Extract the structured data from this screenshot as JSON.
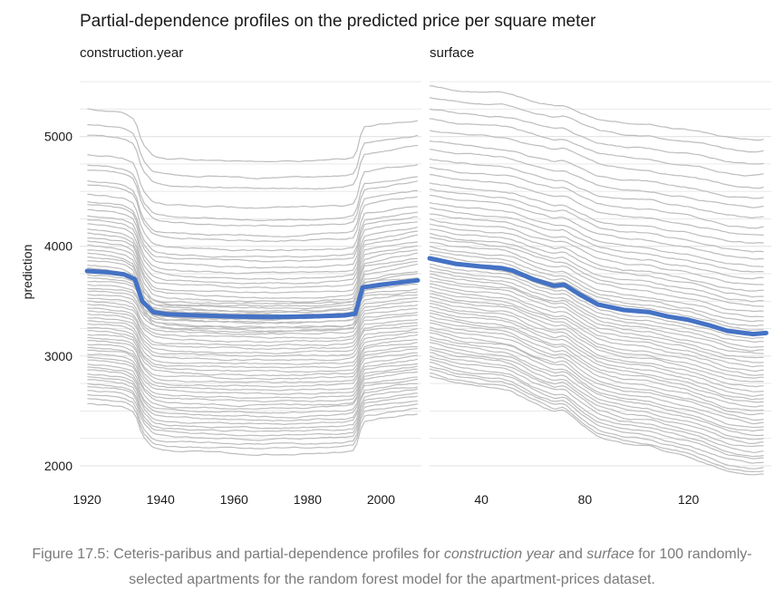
{
  "chart_data": {
    "type": "line",
    "title": "Partial-dependence profiles on the predicted price per square meter",
    "ylabel": "prediction",
    "ylim": [
      1950,
      5550
    ],
    "yticks": [
      2000,
      3000,
      4000,
      5000
    ],
    "grid": true,
    "colors": {
      "profile": "#bdbdbd",
      "average": "#4472c4",
      "grid": "#e6e6e6"
    },
    "panels": [
      {
        "name": "construction.year",
        "xlim": [
          1918,
          2011
        ],
        "xticks": [
          1920,
          1940,
          1960,
          1980,
          2000
        ],
        "x": [
          1920,
          1925,
          1930,
          1933,
          1935,
          1938,
          1942,
          1950,
          1960,
          1970,
          1980,
          1990,
          1993,
          1995,
          2000,
          2005,
          2010
        ],
        "average": [
          3775,
          3765,
          3745,
          3700,
          3500,
          3400,
          3380,
          3370,
          3360,
          3355,
          3360,
          3370,
          3385,
          3625,
          3650,
          3670,
          3690
        ],
        "profile_bases": [
          5250,
          5110,
          5010,
          4840,
          4740,
          4690,
          4600,
          4560,
          4470,
          4410,
          4380,
          4330,
          4280,
          4240,
          4200,
          4160,
          4120,
          4080,
          4050,
          4010,
          3970,
          3940,
          3900,
          3870,
          3830,
          3800,
          3770,
          3740,
          3710,
          3680,
          3650,
          3620,
          3590,
          3560,
          3530,
          3500,
          3470,
          3440,
          3410,
          3380,
          3350,
          3320,
          3290,
          3260,
          3230,
          3200,
          3170,
          3140,
          3110,
          3080,
          3050,
          3020,
          2990,
          2960,
          2930,
          2900,
          2870,
          2840,
          2810,
          2780,
          2750,
          2720,
          2690,
          2650,
          2610,
          2570
        ]
      },
      {
        "name": "surface",
        "xlim": [
          20,
          152
        ],
        "xticks": [
          40,
          80,
          120
        ],
        "x": [
          20,
          30,
          40,
          48,
          52,
          60,
          68,
          72,
          78,
          85,
          95,
          105,
          112,
          120,
          128,
          135,
          145,
          150
        ],
        "average": [
          3890,
          3840,
          3815,
          3800,
          3780,
          3700,
          3640,
          3650,
          3560,
          3470,
          3420,
          3400,
          3360,
          3330,
          3280,
          3230,
          3200,
          3210
        ],
        "profile_bases": [
          5460,
          5360,
          5250,
          5160,
          5060,
          4960,
          4880,
          4800,
          4720,
          4650,
          4580,
          4520,
          4460,
          4400,
          4350,
          4300,
          4250,
          4200,
          4160,
          4120,
          4080,
          4040,
          4000,
          3960,
          3930,
          3900,
          3870,
          3840,
          3810,
          3780,
          3750,
          3720,
          3690,
          3660,
          3630,
          3600,
          3570,
          3540,
          3510,
          3480,
          3450,
          3420,
          3390,
          3360,
          3330,
          3300,
          3270,
          3240,
          3210,
          3180,
          3150,
          3120,
          3090,
          3060,
          3030,
          3000,
          2970,
          2940,
          2910,
          2880,
          2850,
          2820
        ]
      }
    ]
  },
  "caption": {
    "prefix": "Figure 17.5: Ceteris-paribus and partial-dependence profiles for ",
    "em1": "construction year",
    "mid": " and ",
    "em2": "surface",
    "suffix": " for 100 randomly-selected apartments for the random forest model for the apartment-prices dataset."
  }
}
